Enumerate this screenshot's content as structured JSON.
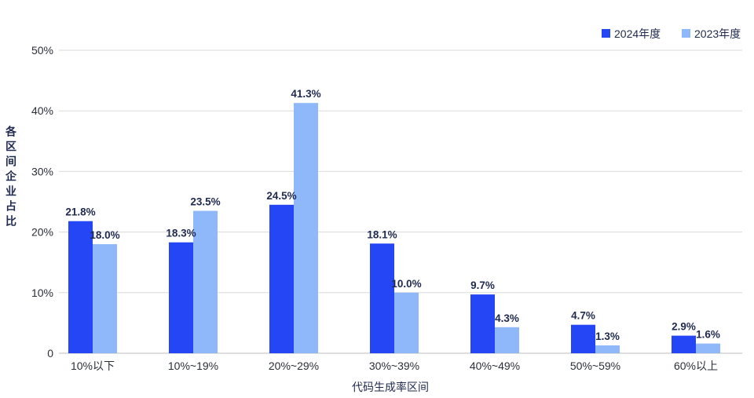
{
  "chart_data": {
    "type": "bar",
    "title": "",
    "xlabel": "代码生成率区间",
    "ylabel": "各区间企业占比",
    "categories": [
      "10%以下",
      "10%~19%",
      "20%~29%",
      "30%~39%",
      "40%~49%",
      "50%~59%",
      "60%以上"
    ],
    "series": [
      {
        "name": "2024年度",
        "color": "#2446F5",
        "values": [
          21.8,
          18.3,
          24.5,
          18.1,
          9.7,
          4.7,
          2.9
        ]
      },
      {
        "name": "2023年度",
        "color": "#8FB8FA",
        "values": [
          18.0,
          23.5,
          41.3,
          10.0,
          4.3,
          1.3,
          1.6
        ]
      }
    ],
    "ylim": [
      0,
      50
    ],
    "ytick_values": [
      0,
      10,
      20,
      30,
      40,
      50
    ],
    "ytick_labels": [
      "0",
      "10%",
      "20%",
      "30%",
      "40%",
      "50%"
    ],
    "value_unit": "%",
    "grid": true,
    "legend_position": "top-right"
  }
}
